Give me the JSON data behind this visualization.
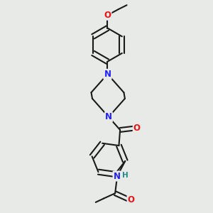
{
  "bg_color": "#e8eae8",
  "bond_color": "#1a1a1a",
  "bond_width": 1.5,
  "atom_colors": {
    "N": "#2020FF",
    "O": "#EE1111",
    "H": "#228888",
    "C": "#1a1a1a"
  },
  "font_size_atom": 8.5,
  "font_size_small": 7.0,
  "dbo": 0.12
}
